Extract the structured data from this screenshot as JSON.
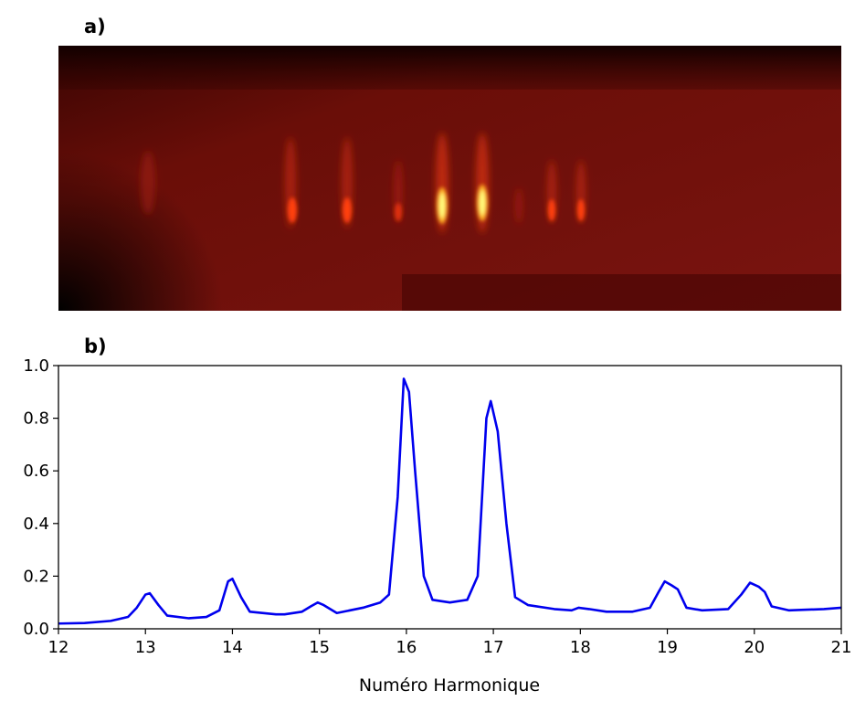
{
  "image_panel": {
    "label": "a)"
  },
  "chart_data": {
    "type": "line",
    "label": "b)",
    "x_label": "Numéro Harmonique",
    "xlim": [
      12,
      21
    ],
    "ylim": [
      0,
      1
    ],
    "xticks": [
      12,
      13,
      14,
      15,
      16,
      17,
      18,
      19,
      20,
      21
    ],
    "yticks": [
      {
        "value": 0,
        "label": "0.0"
      },
      0.2,
      0.4,
      0.6,
      0.8,
      {
        "value": 1,
        "label": "1.0"
      }
    ],
    "series": [
      {
        "color": "#0000ee",
        "x": [
          12.0,
          12.3,
          12.6,
          12.8,
          12.9,
          13.0,
          13.05,
          13.15,
          13.25,
          13.5,
          13.7,
          13.85,
          13.95,
          14.0,
          14.1,
          14.2,
          14.5,
          14.6,
          14.8,
          14.9,
          14.98,
          15.05,
          15.2,
          15.5,
          15.7,
          15.8,
          15.9,
          15.97,
          16.03,
          16.1,
          16.2,
          16.3,
          16.5,
          16.7,
          16.82,
          16.92,
          16.97,
          17.05,
          17.15,
          17.25,
          17.4,
          17.7,
          17.9,
          17.98,
          18.1,
          18.3,
          18.6,
          18.8,
          18.9,
          18.97,
          19.05,
          19.12,
          19.22,
          19.4,
          19.7,
          19.85,
          19.95,
          20.05,
          20.12,
          20.2,
          20.4,
          20.8,
          21.0
        ],
        "values": [
          0.02,
          0.022,
          0.03,
          0.045,
          0.08,
          0.13,
          0.135,
          0.09,
          0.05,
          0.04,
          0.045,
          0.07,
          0.18,
          0.19,
          0.12,
          0.065,
          0.055,
          0.055,
          0.065,
          0.085,
          0.1,
          0.09,
          0.06,
          0.08,
          0.1,
          0.13,
          0.5,
          0.95,
          0.9,
          0.6,
          0.2,
          0.11,
          0.1,
          0.11,
          0.2,
          0.8,
          0.865,
          0.75,
          0.4,
          0.12,
          0.09,
          0.075,
          0.07,
          0.08,
          0.075,
          0.065,
          0.065,
          0.08,
          0.14,
          0.18,
          0.165,
          0.15,
          0.08,
          0.07,
          0.075,
          0.13,
          0.175,
          0.16,
          0.14,
          0.085,
          0.07,
          0.075,
          0.08
        ]
      }
    ]
  }
}
